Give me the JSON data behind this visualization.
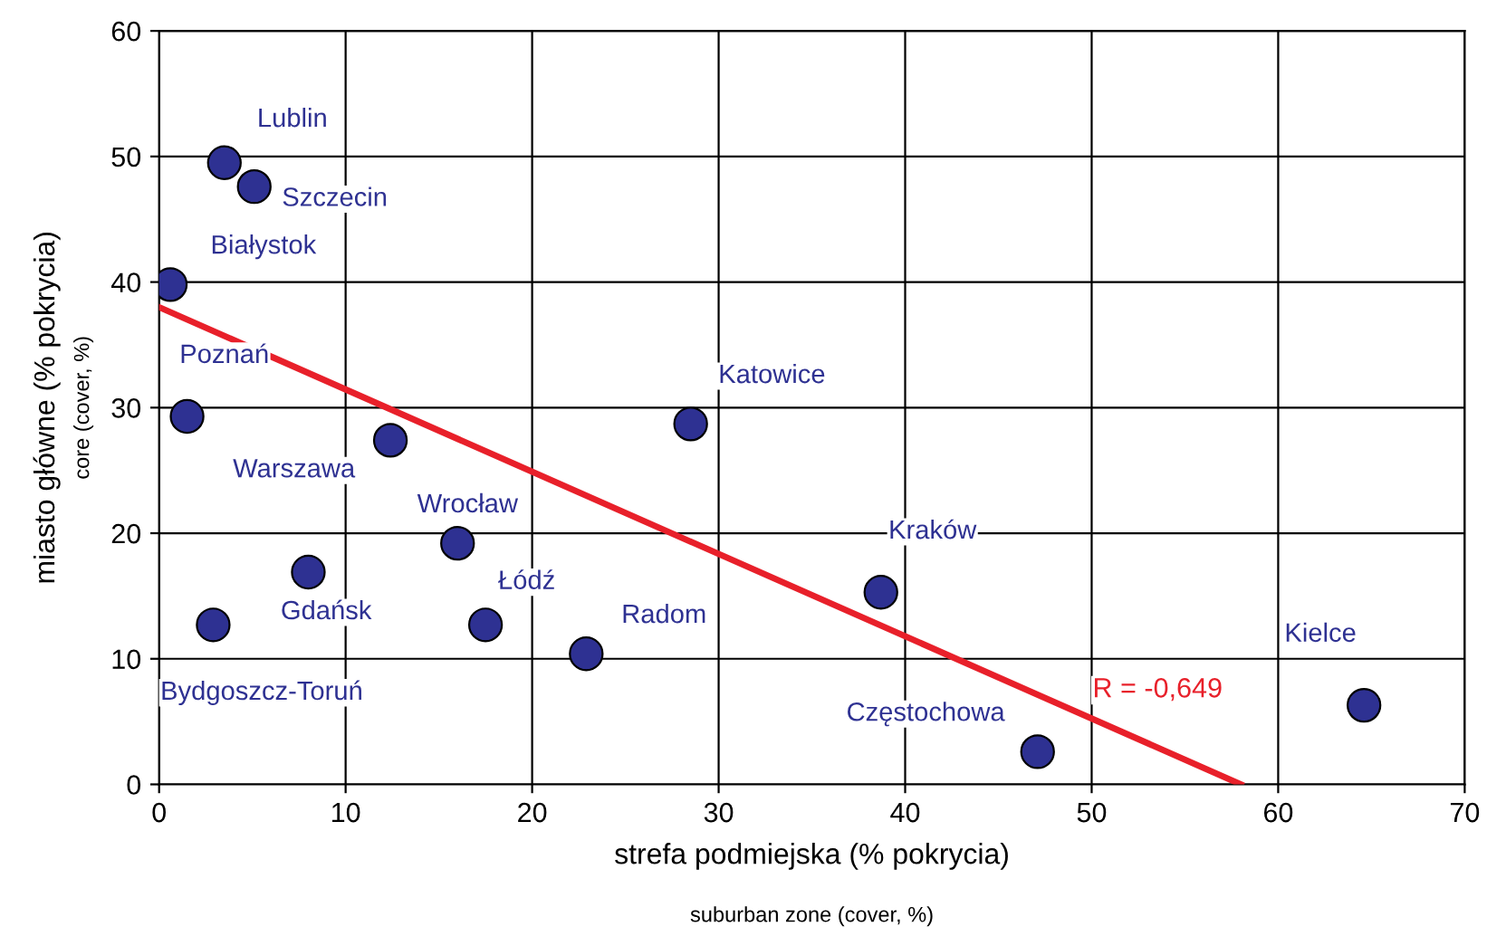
{
  "chart_data": {
    "type": "scatter",
    "xlabel": "strefa podmiejska (% pokrycia)",
    "ylabel": "miasto główne (% pokrycia)",
    "xlim": [
      0,
      70
    ],
    "xticks": [
      0,
      10,
      20,
      30,
      40,
      50,
      60,
      70
    ],
    "ylim": [
      0,
      60
    ],
    "yticks": [
      0,
      10,
      20,
      30,
      40,
      50,
      60
    ],
    "grid": true,
    "marker": "circle",
    "series": [
      {
        "name": "Lublin",
        "color": "#2e3192",
        "x": [
          3.5
        ],
        "values": [
          49.5
        ]
      },
      {
        "name": "Szczecin",
        "color": "#2e3192",
        "x": [
          5.1
        ],
        "values": [
          47.6
        ]
      },
      {
        "name": "Białystok",
        "color": "#2e3192",
        "x": [
          0.6
        ],
        "values": [
          39.8
        ]
      },
      {
        "name": "Poznań",
        "color": "#2e3192",
        "x": [
          1.5
        ],
        "values": [
          29.3
        ]
      },
      {
        "name": "Warszawa",
        "color": "#2e3192",
        "x": [
          12.4
        ],
        "values": [
          27.4
        ]
      },
      {
        "name": "Katowice",
        "color": "#2e3192",
        "x": [
          28.5
        ],
        "values": [
          28.7
        ]
      },
      {
        "name": "Wrocław",
        "color": "#2e3192",
        "x": [
          16.0
        ],
        "values": [
          19.2
        ]
      },
      {
        "name": "Gdańsk",
        "color": "#2e3192",
        "x": [
          8.0
        ],
        "values": [
          16.9
        ]
      },
      {
        "name": "Bydgoszcz-Toruń",
        "color": "#2e3192",
        "x": [
          2.9
        ],
        "values": [
          12.7
        ]
      },
      {
        "name": "Łódź",
        "color": "#2e3192",
        "x": [
          17.5
        ],
        "values": [
          12.7
        ]
      },
      {
        "name": "Radom",
        "color": "#2e3192",
        "x": [
          22.9
        ],
        "values": [
          10.4
        ]
      },
      {
        "name": "Kraków",
        "color": "#2e3192",
        "x": [
          38.7
        ],
        "values": [
          15.3
        ]
      },
      {
        "name": "Częstochowa",
        "color": "#2e3192",
        "x": [
          47.1
        ],
        "values": [
          2.6
        ]
      },
      {
        "name": "Kielce",
        "color": "#2e3192",
        "x": [
          64.6
        ],
        "values": [
          6.3
        ]
      },
      {
        "type": "line",
        "color": "#e8202a",
        "x": [
          0,
          58
        ],
        "values": [
          38,
          0
        ],
        "marker": "none"
      }
    ],
    "annotations": [
      "suburban zone (cover, %)",
      "core (cover, %)",
      "R = -0,649"
    ]
  }
}
